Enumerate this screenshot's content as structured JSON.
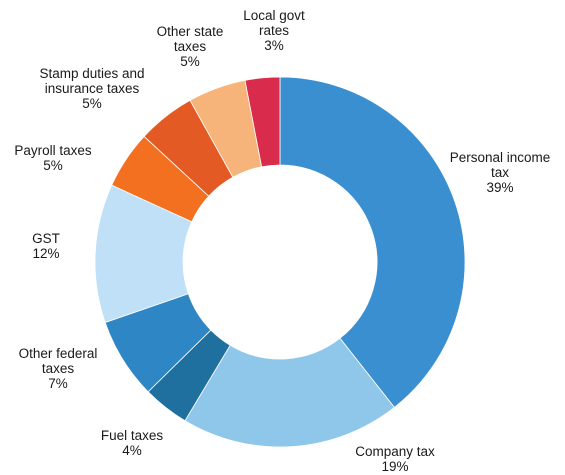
{
  "chart_data": {
    "type": "pie",
    "donut": true,
    "categories": [
      "Personal income tax",
      "Company tax",
      "Fuel taxes",
      "Other federal taxes",
      "GST",
      "Payroll taxes",
      "Stamp duties and insurance taxes",
      "Other state taxes",
      "Local govt rates"
    ],
    "values": [
      39,
      19,
      4,
      7,
      12,
      5,
      5,
      5,
      3
    ],
    "colors": [
      "#3a8fd1",
      "#8ec7ea",
      "#1f6f9f",
      "#2f86c4",
      "#bfe0f6",
      "#f37021",
      "#e45a25",
      "#f6b47a",
      "#d92b4b"
    ],
    "labels": [
      {
        "lines": [
          "Personal income",
          "tax"
        ],
        "value": "39%"
      },
      {
        "lines": [
          "Company tax"
        ],
        "value": "19%"
      },
      {
        "lines": [
          "Fuel taxes"
        ],
        "value": "4%"
      },
      {
        "lines": [
          "Other federal",
          "taxes"
        ],
        "value": "7%"
      },
      {
        "lines": [
          "GST"
        ],
        "value": "12%"
      },
      {
        "lines": [
          "Payroll taxes"
        ],
        "value": "5%"
      },
      {
        "lines": [
          "Stamp duties and",
          "insurance taxes"
        ],
        "value": "5%"
      },
      {
        "lines": [
          "Other state",
          "taxes"
        ],
        "value": "5%"
      },
      {
        "lines": [
          "Local govt",
          "rates"
        ],
        "value": "3%"
      }
    ],
    "legend": "none"
  }
}
